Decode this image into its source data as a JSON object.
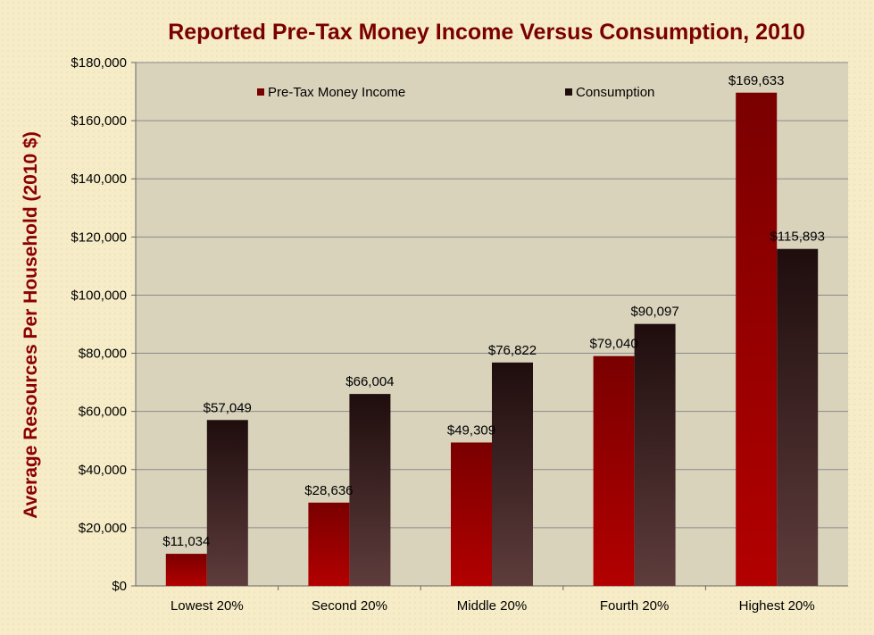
{
  "chart_data": {
    "type": "bar",
    "title": "Reported Pre-Tax Money Income Versus Consumption, 2010",
    "xlabel": "",
    "ylabel": "Average Resources Per Household (2010 $)",
    "ylim": [
      0,
      180000
    ],
    "ytick_step": 20000,
    "ytick_labels": [
      "$0",
      "$20,000",
      "$40,000",
      "$60,000",
      "$80,000",
      "$100,000",
      "$120,000",
      "$140,000",
      "$160,000",
      "$180,000"
    ],
    "grid": true,
    "legend_position": "top",
    "categories": [
      "Lowest 20%",
      "Second 20%",
      "Middle 20%",
      "Fourth 20%",
      "Highest 20%"
    ],
    "series": [
      {
        "name": "Pre-Tax Money Income",
        "values": [
          11034,
          28636,
          49309,
          79040,
          169633
        ],
        "labels": [
          "$11,034",
          "$28,636",
          "$49,309",
          "$79,040",
          "$169,633"
        ],
        "color_top": "#7a0000",
        "color_bottom": "#b30000"
      },
      {
        "name": "Consumption",
        "values": [
          57049,
          66004,
          76822,
          90097,
          115893
        ],
        "labels": [
          "$57,049",
          "$66,004",
          "$76,822",
          "$90,097",
          "$115,893"
        ],
        "color_top": "#1f0d0d",
        "color_bottom": "#5e3c3c"
      }
    ]
  }
}
